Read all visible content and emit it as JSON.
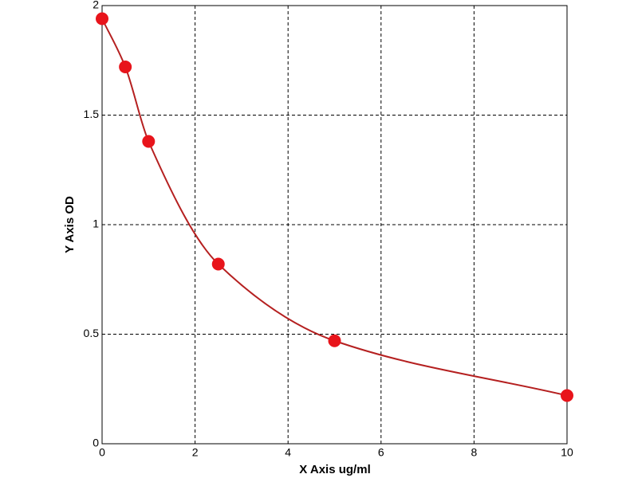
{
  "chart_data": {
    "type": "line",
    "x": [
      0,
      0.5,
      1,
      2.5,
      5,
      10
    ],
    "values": [
      1.94,
      1.72,
      1.38,
      0.82,
      0.47,
      0.22
    ],
    "line_color": "#b52020",
    "marker_color": "#e8141b",
    "xlim": [
      0,
      10
    ],
    "xticks": [
      0,
      2,
      4,
      6,
      8,
      10
    ],
    "ylim": [
      0,
      2
    ],
    "yticks": [
      0,
      0.5,
      1,
      1.5,
      2
    ],
    "grid": true,
    "xlabel": "X Axis ug/ml",
    "ylabel": "Y Axis OD"
  }
}
